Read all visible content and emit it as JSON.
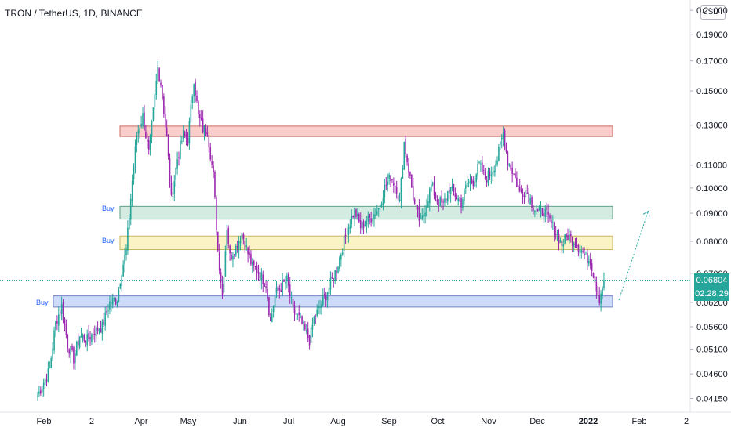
{
  "header": {
    "title": "TRON / TetherUS, 1D, BINANCE",
    "currency": "USDT"
  },
  "price_badges": {
    "last_price": "0.06804",
    "countdown": "02:28:29",
    "color": "#26a69a"
  },
  "chart_data": {
    "type": "candlestick",
    "title": "TRON / TetherUS, 1D, BINANCE",
    "y_axis": {
      "ticks": [
        "0.21000",
        "0.19000",
        "0.17000",
        "0.15000",
        "0.13000",
        "0.11000",
        "0.10000",
        "0.09000",
        "0.08000",
        "0.07000",
        "0.06200",
        "0.05600",
        "0.05100",
        "0.04600",
        "0.04150"
      ],
      "scale": "log",
      "range": [
        0.0405,
        0.215
      ]
    },
    "x_axis": {
      "ticks": [
        "Feb",
        "2",
        "Apr",
        "May",
        "Jun",
        "Jul",
        "Aug",
        "Sep",
        "Oct",
        "Nov",
        "Dec",
        "2022",
        "Feb",
        "2"
      ]
    },
    "zones": [
      {
        "label": "",
        "low": 0.124,
        "high": 0.1295,
        "color": "#f8c9c4",
        "border": "#c96b63"
      },
      {
        "label": "Buy",
        "low": 0.0878,
        "high": 0.0926,
        "color": "#cfe9df",
        "border": "#5e9e84"
      },
      {
        "label": "Buy",
        "low": 0.0773,
        "high": 0.0818,
        "color": "#fbf1c0",
        "border": "#c9b660"
      },
      {
        "label": "Buy",
        "low": 0.0608,
        "high": 0.0637,
        "color": "#c9d6f8",
        "border": "#6f83c9"
      }
    ],
    "last_price": 0.06804,
    "projection": {
      "from_price": 0.0626,
      "to_price": 0.0905
    },
    "colors": {
      "up": "#26a69a",
      "down": "#9c27b0"
    },
    "path_points": [
      [
        0,
        0.042
      ],
      [
        8,
        0.047
      ],
      [
        12,
        0.057
      ],
      [
        16,
        0.061
      ],
      [
        20,
        0.052
      ],
      [
        24,
        0.049
      ],
      [
        28,
        0.054
      ],
      [
        33,
        0.053
      ],
      [
        38,
        0.055
      ],
      [
        43,
        0.056
      ],
      [
        48,
        0.062
      ],
      [
        53,
        0.063
      ],
      [
        56,
        0.071
      ],
      [
        59,
        0.077
      ],
      [
        63,
        0.103
      ],
      [
        66,
        0.125
      ],
      [
        70,
        0.135
      ],
      [
        74,
        0.115
      ],
      [
        78,
        0.146
      ],
      [
        80,
        0.165
      ],
      [
        82,
        0.155
      ],
      [
        86,
        0.123
      ],
      [
        89,
        0.095
      ],
      [
        93,
        0.113
      ],
      [
        97,
        0.125
      ],
      [
        100,
        0.122
      ],
      [
        104,
        0.158
      ],
      [
        107,
        0.135
      ],
      [
        110,
        0.128
      ],
      [
        113,
        0.127
      ],
      [
        117,
        0.105
      ],
      [
        120,
        0.077
      ],
      [
        123,
        0.064
      ],
      [
        126,
        0.085
      ],
      [
        128,
        0.075
      ],
      [
        132,
        0.078
      ],
      [
        136,
        0.083
      ],
      [
        140,
        0.076
      ],
      [
        143,
        0.072
      ],
      [
        146,
        0.071
      ],
      [
        149,
        0.069
      ],
      [
        152,
        0.067
      ],
      [
        155,
        0.057
      ],
      [
        158,
        0.064
      ],
      [
        162,
        0.066
      ],
      [
        166,
        0.068
      ],
      [
        170,
        0.06
      ],
      [
        174,
        0.058
      ],
      [
        178,
        0.055
      ],
      [
        181,
        0.053
      ],
      [
        184,
        0.058
      ],
      [
        188,
        0.061
      ],
      [
        192,
        0.064
      ],
      [
        196,
        0.068
      ],
      [
        200,
        0.073
      ],
      [
        204,
        0.08
      ],
      [
        208,
        0.087
      ],
      [
        211,
        0.091
      ],
      [
        215,
        0.085
      ],
      [
        219,
        0.087
      ],
      [
        223,
        0.089
      ],
      [
        227,
        0.092
      ],
      [
        231,
        0.1
      ],
      [
        235,
        0.105
      ],
      [
        239,
        0.1
      ],
      [
        241,
        0.094
      ],
      [
        244,
        0.121
      ],
      [
        247,
        0.108
      ],
      [
        251,
        0.093
      ],
      [
        255,
        0.086
      ],
      [
        258,
        0.092
      ],
      [
        262,
        0.101
      ],
      [
        266,
        0.095
      ],
      [
        270,
        0.093
      ],
      [
        274,
        0.1
      ],
      [
        278,
        0.097
      ],
      [
        282,
        0.094
      ],
      [
        286,
        0.102
      ],
      [
        290,
        0.103
      ],
      [
        294,
        0.11
      ],
      [
        298,
        0.104
      ],
      [
        302,
        0.107
      ],
      [
        306,
        0.113
      ],
      [
        310,
        0.126
      ],
      [
        313,
        0.112
      ],
      [
        317,
        0.106
      ],
      [
        321,
        0.098
      ],
      [
        325,
        0.099
      ],
      [
        329,
        0.094
      ],
      [
        333,
        0.09
      ],
      [
        337,
        0.091
      ],
      [
        341,
        0.087
      ],
      [
        345,
        0.083
      ],
      [
        349,
        0.079
      ],
      [
        353,
        0.082
      ],
      [
        357,
        0.08
      ],
      [
        361,
        0.078
      ],
      [
        365,
        0.075
      ],
      [
        368,
        0.074
      ],
      [
        371,
        0.068
      ],
      [
        374,
        0.063
      ],
      [
        377,
        0.068
      ]
    ]
  },
  "zone_labels": {
    "buy1": "Buy",
    "buy2": "Buy",
    "buy3": "Buy"
  }
}
